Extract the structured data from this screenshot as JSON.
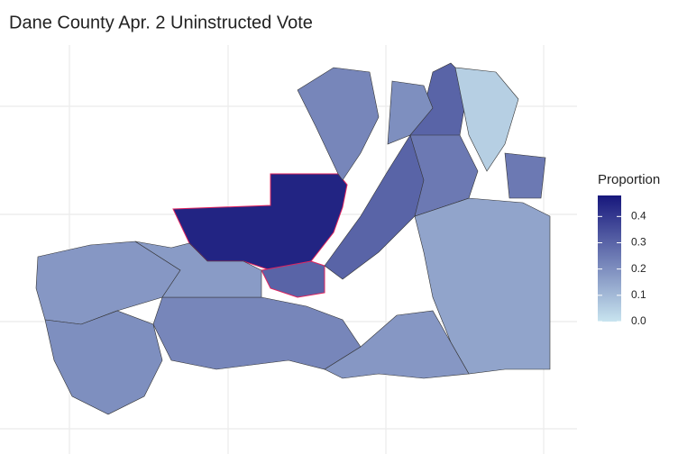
{
  "chart_data": {
    "type": "choropleth",
    "title": "Dane County Apr. 2 Uninstructed Vote",
    "legend_title": "Proportion",
    "color_low": "#c8e4ef",
    "color_high": "#17177c",
    "clim": [
      0,
      0.48
    ],
    "cticks": [
      {
        "value": 0,
        "label": "0.0"
      },
      {
        "value": 0.1,
        "label": "0.1"
      },
      {
        "value": 0.2,
        "label": "0.2"
      },
      {
        "value": 0.3,
        "label": "0.3"
      },
      {
        "value": 0.4,
        "label": "0.4"
      }
    ],
    "values": [
      0.18,
      0.2,
      0.22,
      0.45,
      0.3,
      0.3,
      0.22,
      0.2,
      0.05,
      0.15,
      0.18,
      0.25,
      0.25,
      0.17
    ]
  }
}
